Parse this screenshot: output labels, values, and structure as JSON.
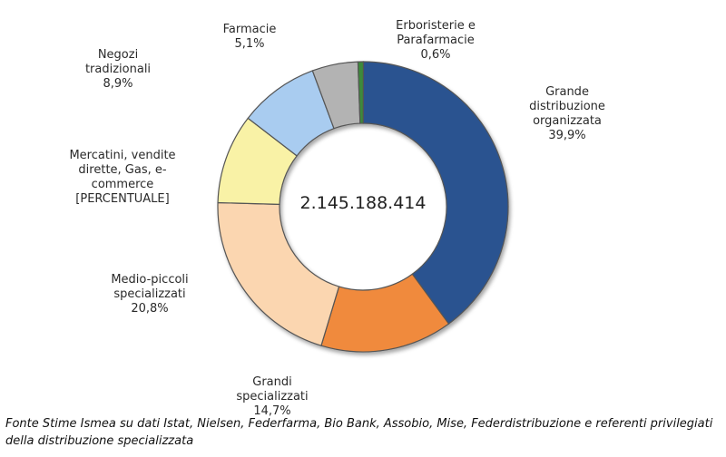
{
  "chart_data": {
    "type": "pie",
    "donut": true,
    "center_label": "2.145.188.414",
    "slices": [
      {
        "name": "Grande distribuzione organizzata",
        "label_lines": [
          "Grande",
          "distribuzione",
          "organizzata"
        ],
        "value_label": "39,9%",
        "value": 39.9,
        "color": "#2b5390"
      },
      {
        "name": "Grandi specializzati",
        "label_lines": [
          "Grandi",
          "specializzati"
        ],
        "value_label": "14,7%",
        "value": 14.7,
        "color": "#f08a3c"
      },
      {
        "name": "Medio-piccoli specializzati",
        "label_lines": [
          "Medio-piccoli",
          "specializzati"
        ],
        "value_label": "20,8%",
        "value": 20.8,
        "color": "#fbd6b0"
      },
      {
        "name": "Mercatini, vendite dirette, Gas, e-commerce",
        "label_lines": [
          "Mercatini, vendite",
          "dirette, Gas, e-",
          "commerce"
        ],
        "value_label": "[PERCENTUALE]",
        "value": 10.0,
        "color": "#f9f2a6"
      },
      {
        "name": "Negozi tradizionali",
        "label_lines": [
          "Negozi",
          "tradizionali"
        ],
        "value_label": "8,9%",
        "value": 8.9,
        "color": "#a9ccf0"
      },
      {
        "name": "Farmacie",
        "label_lines": [
          "Farmacie"
        ],
        "value_label": "5,1%",
        "value": 5.1,
        "color": "#b3b3b3"
      },
      {
        "name": "Erboristerie e Parafarmacie",
        "label_lines": [
          "Erboristerie e",
          "Parafarmacie"
        ],
        "value_label": "0,6%",
        "value": 0.6,
        "color": "#3d8a3a"
      }
    ]
  },
  "source_note": "Fonte Stime Ismea su dati Istat, Nielsen, Federfarma, Bio Bank, Assobio, Mise, Federdistribuzione e referenti privilegiati della distribuzione specializzata"
}
